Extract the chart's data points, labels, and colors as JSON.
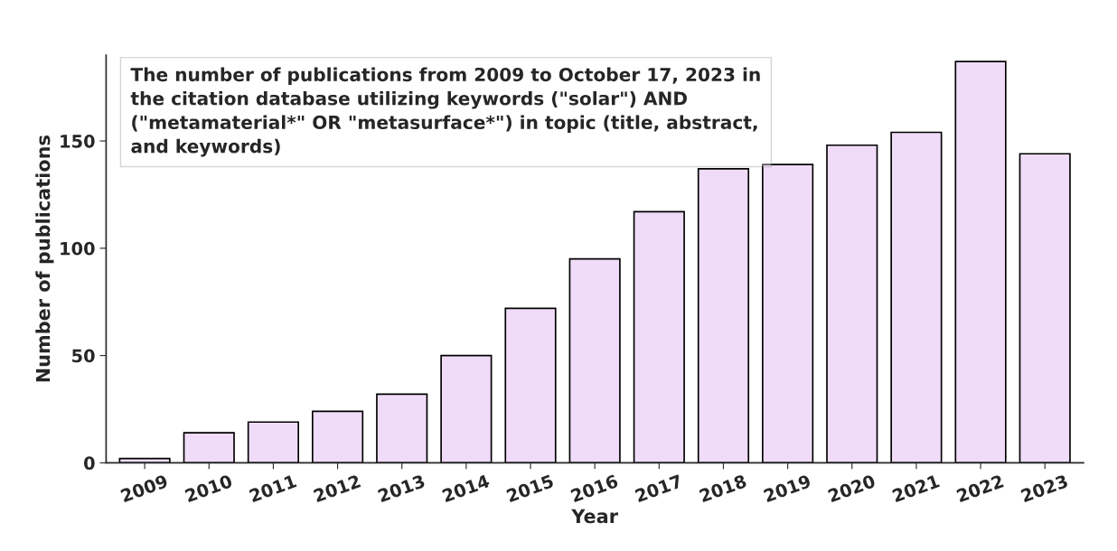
{
  "chart_data": {
    "type": "bar",
    "xlabel": "Year",
    "ylabel": "Number of publications",
    "categories": [
      "2009",
      "2010",
      "2011",
      "2012",
      "2013",
      "2014",
      "2015",
      "2016",
      "2017",
      "2018",
      "2019",
      "2020",
      "2021",
      "2022",
      "2023"
    ],
    "values": [
      2,
      14,
      19,
      24,
      32,
      50,
      72,
      95,
      117,
      137,
      139,
      148,
      154,
      187,
      144
    ],
    "color": "#f0dcf8",
    "ylim": [
      0,
      190
    ],
    "yticks": [
      0,
      50,
      100,
      150
    ],
    "grid": false,
    "annotations": [
      "The number of publications from 2009 to October 17, 2023 in the citation database utilizing keywords (\"solar\") AND (\"metamaterial*\" OR \"metasurface*\") in topic (title, abstract, and keywords)"
    ]
  }
}
